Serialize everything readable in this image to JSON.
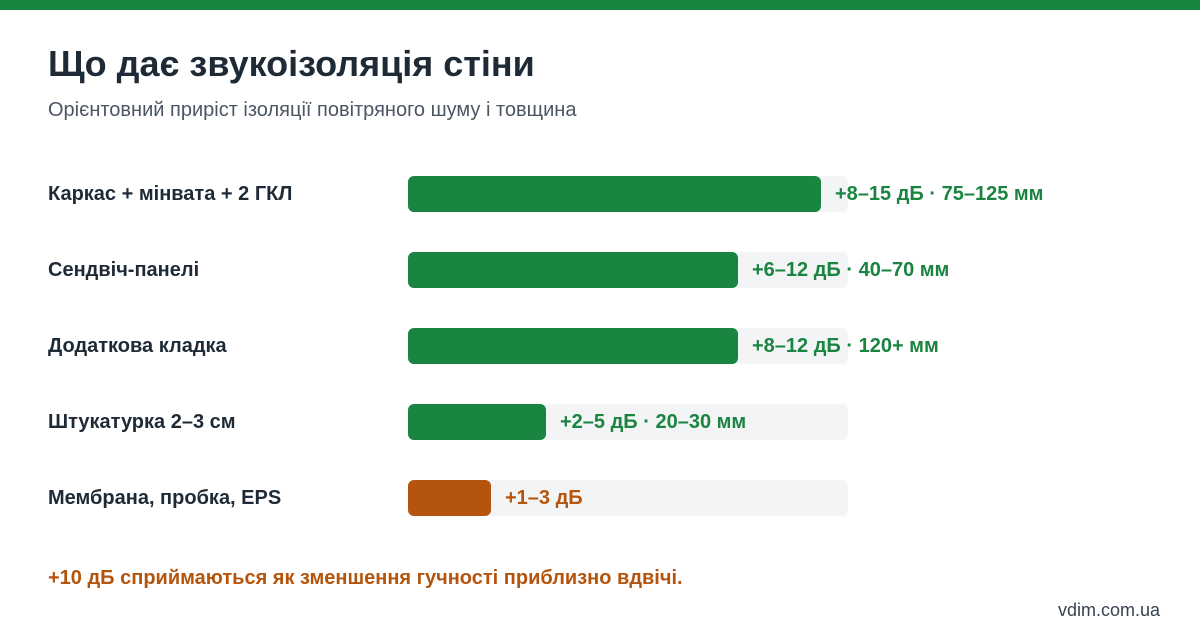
{
  "colors": {
    "accent_green": "#1a8441",
    "accent_orange": "#b5540c",
    "top_bar": "#1a8441"
  },
  "header": {
    "title": "Що дає звукоізоляція стіни",
    "subtitle": "Орієнтовний приріст ізоляції повітряного шуму і товщина"
  },
  "chart_data": {
    "type": "bar",
    "orientation": "horizontal",
    "scale_max_db": 16,
    "categories": [
      "Каркас + мінвата + 2 ГКЛ",
      "Сендвіч-панелі",
      "Додаткова кладка",
      "Штукатурка 2–3 см",
      "Мембрана, пробка, EPS"
    ],
    "values": [
      15,
      12,
      12,
      5,
      3
    ],
    "value_labels": [
      "+8–15 дБ · 75–125 мм",
      "+6–12 дБ · 40–70 мм",
      "+8–12 дБ · 120+ мм",
      "+2–5 дБ · 20–30 мм",
      "+1–3 дБ"
    ],
    "bar_colors": [
      "#1a8441",
      "#1a8441",
      "#1a8441",
      "#1a8441",
      "#b5540c"
    ]
  },
  "footer": {
    "note": "+10 дБ сприймаються як зменшення гучності приблизно вдвічі.",
    "source": "vdim.com.ua"
  }
}
